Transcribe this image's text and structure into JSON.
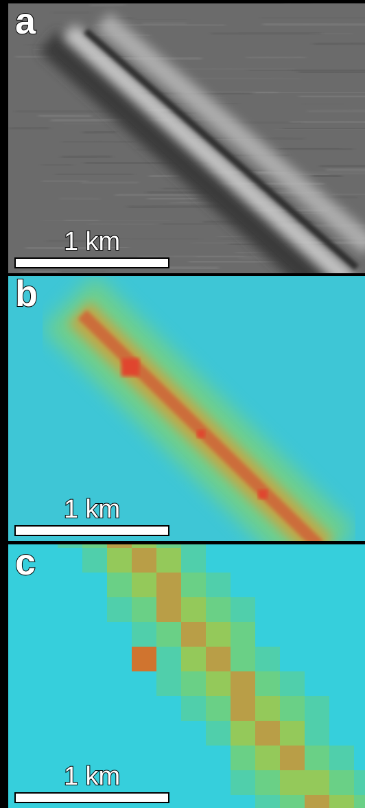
{
  "panels": [
    {
      "label": "a",
      "scale_label": "1 km"
    },
    {
      "label": "b",
      "scale_label": "1 km"
    },
    {
      "label": "c",
      "scale_label": "1 km"
    }
  ]
}
